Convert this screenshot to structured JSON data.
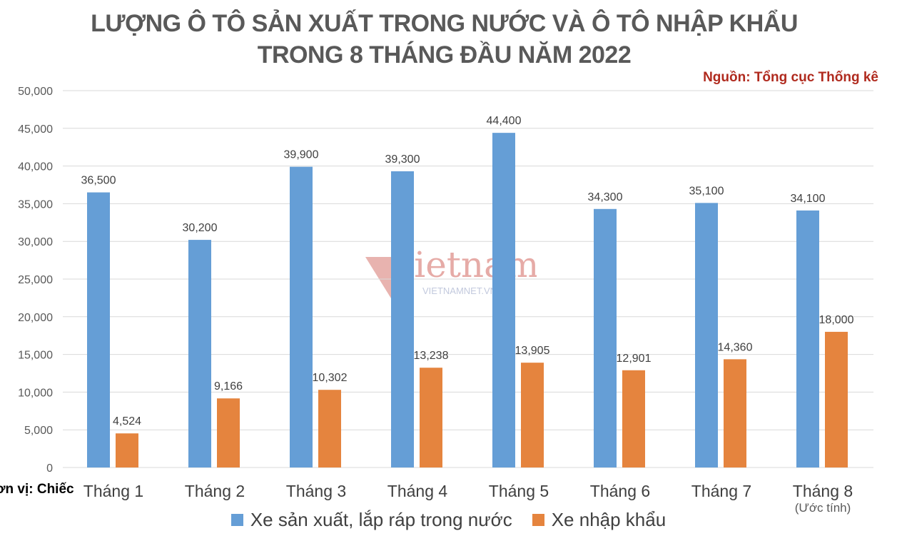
{
  "title_line1": "LƯỢNG Ô TÔ SẢN XUẤT TRONG NƯỚC VÀ Ô TÔ NHẬP KHẨU",
  "title_line2": "TRONG 8 THÁNG ĐẦU NĂM 2022",
  "source": "Nguồn: Tổng cục Thống kê",
  "unit": "ơn vị: Chiếc",
  "watermark": {
    "logo_text": "vietnamnet",
    "domain": "VIETNAMNET.VN"
  },
  "colors": {
    "domestic": "#659ed6",
    "imported": "#e5843e",
    "grid": "#d9d9d9",
    "text": "#404040"
  },
  "chart_data": {
    "type": "bar",
    "categories": [
      "Tháng 1",
      "Tháng 2",
      "Tháng 3",
      "Tháng 4",
      "Tháng 5",
      "Tháng 6",
      "Tháng 7",
      "Tháng 8"
    ],
    "category_notes": [
      "",
      "",
      "",
      "",
      "",
      "",
      "",
      "(Ước tính)"
    ],
    "series": [
      {
        "name": "Xe sản xuất, lắp ráp trong nước",
        "values": [
          36500,
          30200,
          39900,
          39300,
          44400,
          34300,
          35100,
          34100
        ]
      },
      {
        "name": "Xe nhập khẩu",
        "values": [
          4524,
          9166,
          10302,
          13238,
          13905,
          12901,
          14360,
          18000
        ]
      }
    ],
    "value_labels": [
      [
        "36,500",
        "30,200",
        "39,900",
        "39,300",
        "44,400",
        "34,300",
        "35,100",
        "34,100"
      ],
      [
        "4,524",
        "9,166",
        "10,302",
        "13,238",
        "13,905",
        "12,901",
        "14,360",
        "18,000"
      ]
    ],
    "ylim": [
      0,
      50000
    ],
    "yticks": [
      0,
      5000,
      10000,
      15000,
      20000,
      25000,
      30000,
      35000,
      40000,
      45000,
      50000
    ],
    "ytick_labels": [
      "0",
      "5,000",
      "10,000",
      "15,000",
      "20,000",
      "25,000",
      "30,000",
      "35,000",
      "40,000",
      "45,000",
      "50,000"
    ],
    "grid": true,
    "legend_position": "bottom"
  }
}
